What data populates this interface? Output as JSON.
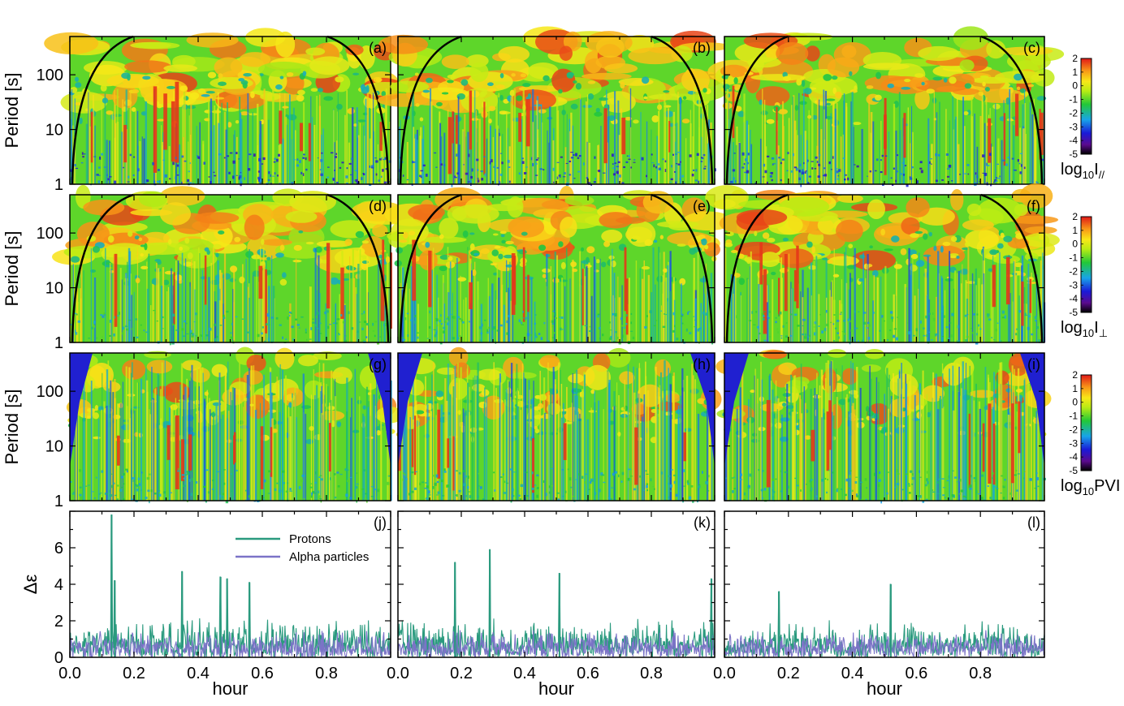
{
  "chart_data": [
    {
      "type": "heatmap",
      "rows": [
        {
          "ylabel": "Period [s]",
          "yticks": [
            "1",
            "10",
            "100"
          ],
          "colorbar": {
            "label_main": "log",
            "label_sub": "10",
            "label_rest": "I",
            "label_rest_sub": "//",
            "ticks": [
              "2",
              "1",
              "0",
              "-1",
              "-2",
              "-3",
              "-4",
              "-5"
            ],
            "range": [
              -5,
              2
            ]
          },
          "panels": [
            "(a)",
            "(b)",
            "(c)"
          ]
        },
        {
          "ylabel": "Period [s]",
          "yticks": [
            "1",
            "10",
            "100"
          ],
          "colorbar": {
            "label_main": "log",
            "label_sub": "10",
            "label_rest": "I",
            "label_rest_sub": "⊥",
            "ticks": [
              "2",
              "1",
              "0",
              "-1",
              "-2",
              "-3",
              "-4",
              "-5"
            ],
            "range": [
              -5,
              2
            ]
          },
          "panels": [
            "(d)",
            "(e)",
            "(f)"
          ]
        },
        {
          "ylabel": "Period [s]",
          "yticks": [
            "1",
            "10",
            "100"
          ],
          "colorbar": {
            "label_main": "log",
            "label_sub": "10",
            "label_rest": "PVI",
            "label_rest_sub": "",
            "ticks": [
              "2",
              "1",
              "0",
              "-1",
              "-2",
              "-3",
              "-4",
              "-5"
            ],
            "range": [
              -5,
              2
            ]
          },
          "panels": [
            "(g)",
            "(h)",
            "(i)"
          ]
        }
      ],
      "yscale": "log",
      "ylim": [
        1,
        500
      ],
      "colormap": [
        "#000000",
        "#5b0a8f",
        "#1a1ad8",
        "#18a4e8",
        "#22c838",
        "#b8ec14",
        "#f8e818",
        "#f89818",
        "#e01818"
      ]
    },
    {
      "type": "line",
      "ylabel": "Δε",
      "xlabel": "hour",
      "xlim": [
        0.0,
        1.0
      ],
      "ylim": [
        0,
        8
      ],
      "xticks": [
        "0.0",
        "0.2",
        "0.4",
        "0.6",
        "0.8"
      ],
      "yticks": [
        "0",
        "2",
        "4",
        "6"
      ],
      "panels": [
        "(j)",
        "(k)",
        "(l)"
      ],
      "series": [
        {
          "name": "Protons",
          "color": "#2a9a7e"
        },
        {
          "name": "Alpha particles",
          "color": "#7b73c7"
        }
      ],
      "peaks": [
        [
          {
            "x": 0.13,
            "y": 7.8
          },
          {
            "x": 0.14,
            "y": 4.2
          },
          {
            "x": 0.35,
            "y": 4.7
          },
          {
            "x": 0.47,
            "y": 4.4
          },
          {
            "x": 0.49,
            "y": 4.3
          },
          {
            "x": 0.56,
            "y": 4.1
          }
        ],
        [
          {
            "x": 0.18,
            "y": 5.2
          },
          {
            "x": 0.29,
            "y": 5.9
          },
          {
            "x": 0.51,
            "y": 4.6
          },
          {
            "x": 0.99,
            "y": 4.3
          }
        ],
        [
          {
            "x": 0.17,
            "y": 3.6
          },
          {
            "x": 0.52,
            "y": 4.0
          }
        ]
      ]
    }
  ]
}
